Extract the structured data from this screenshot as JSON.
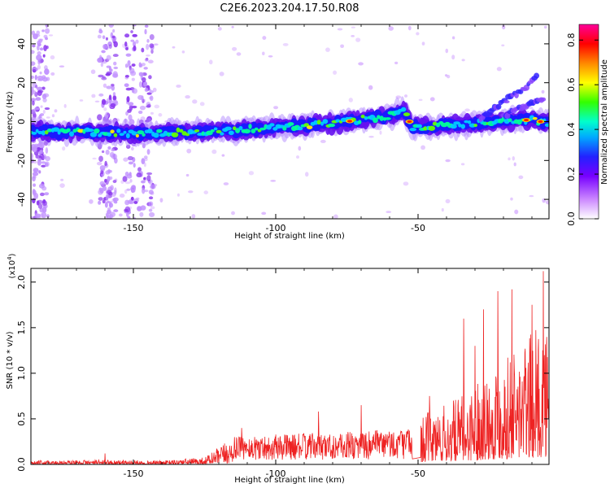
{
  "title": "C2E6.2023.204.17.50.R08",
  "chart_data": [
    {
      "type": "heatmap",
      "name": "spectrogram",
      "xlabel": "Height of straight line (km)",
      "ylabel": "Frequency (Hz)",
      "xlim": [
        -186,
        -4
      ],
      "ylim": [
        -50,
        50
      ],
      "xticks": [
        -150,
        -100,
        -50
      ],
      "yticks": [
        -40,
        -20,
        0,
        20,
        40
      ],
      "ridge": {
        "description_points": [
          [
            -186,
            -5
          ],
          [
            -150,
            -6
          ],
          [
            -120,
            -5
          ],
          [
            -100,
            -3
          ],
          [
            -80,
            -1
          ],
          [
            -70,
            1
          ],
          [
            -60,
            3
          ],
          [
            -55,
            6
          ],
          [
            -52,
            -3
          ],
          [
            -30,
            -1
          ],
          [
            -10,
            1
          ],
          [
            -4,
            -1
          ]
        ],
        "branches": [
          [
            [
              -28,
              2
            ],
            [
              -20,
              10
            ],
            [
              -12,
              18
            ],
            [
              -8,
              25
            ]
          ],
          [
            [
              -20,
              3
            ],
            [
              -12,
              8
            ],
            [
              -6,
              11
            ]
          ]
        ]
      },
      "colorbar": {
        "label": "Normalized spectral amplitude",
        "range": [
          0.0,
          0.87
        ],
        "ticks": [
          0.0,
          0.2,
          0.4,
          0.6,
          0.8
        ],
        "colors": [
          "#ffffff",
          "#8800ff",
          "#3300ff",
          "#00aaff",
          "#00ffcc",
          "#00ff00",
          "#ffff00",
          "#ff8800",
          "#ff0000",
          "#ff0088"
        ]
      }
    },
    {
      "type": "line",
      "name": "snr",
      "xlabel": "Height of straight line (km)",
      "ylabel": "SNR (10 * v/v)",
      "y_multiplier": "(x10",
      "y_multiplier_exp": "4",
      "y_multiplier_close": ")",
      "xlim": [
        -186,
        -4
      ],
      "ylim": [
        0.0,
        2.15
      ],
      "xticks": [
        -150,
        -100,
        -50
      ],
      "yticks": [
        0.0,
        0.5,
        1.0,
        1.5,
        2.0
      ],
      "line_color": "#ee2222",
      "envelope": [
        [
          -186,
          0.04
        ],
        [
          -160,
          0.05
        ],
        [
          -140,
          0.04
        ],
        [
          -125,
          0.08
        ],
        [
          -115,
          0.3
        ],
        [
          -100,
          0.33
        ],
        [
          -80,
          0.35
        ],
        [
          -60,
          0.38
        ],
        [
          -52,
          0.4
        ],
        [
          -48,
          0.55
        ],
        [
          -35,
          0.75
        ],
        [
          -25,
          1.05
        ],
        [
          -15,
          1.3
        ],
        [
          -8,
          1.5
        ],
        [
          -5,
          1.7
        ],
        [
          -4,
          1.0
        ]
      ],
      "peaks": [
        [
          -6,
          2.12
        ],
        [
          -10,
          1.75
        ],
        [
          -17,
          1.92
        ],
        [
          -22,
          1.9
        ],
        [
          -27,
          1.7
        ],
        [
          -30,
          1.3
        ],
        [
          -34,
          1.6
        ],
        [
          -46,
          0.75
        ],
        [
          -70,
          0.65
        ],
        [
          -85,
          0.58
        ],
        [
          -112,
          0.4
        ],
        [
          -160,
          0.12
        ]
      ]
    }
  ]
}
